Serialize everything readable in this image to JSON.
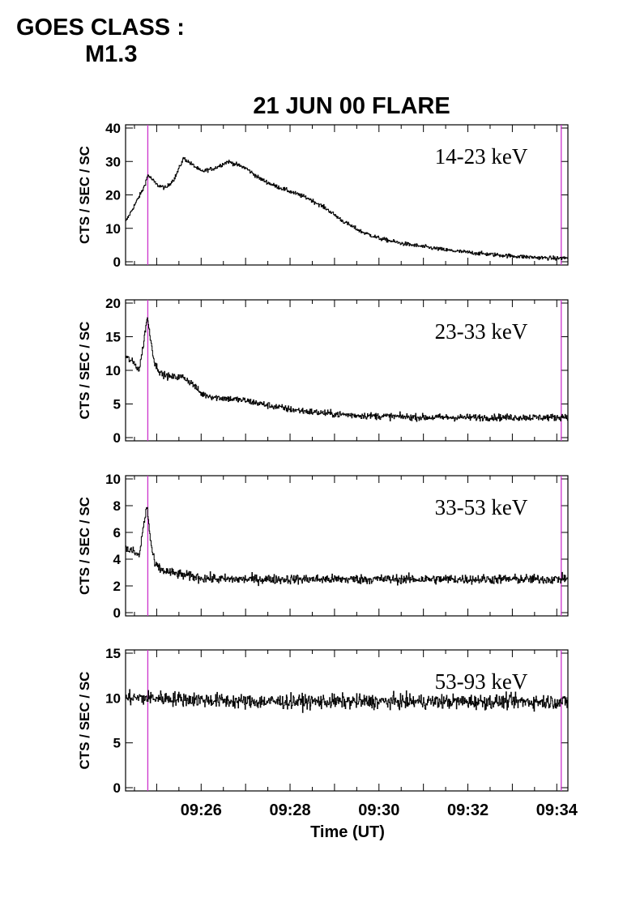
{
  "header": {
    "goes_class_label": "GOES CLASS :",
    "goes_class_value": "M1.3"
  },
  "chart_data": {
    "type": "line",
    "title": "21 JUN 00 FLARE",
    "xlabel": "Time (UT)",
    "x_unit": "minutes after 09:00 UT",
    "xlim": [
      24.3,
      34.25
    ],
    "x_ticks": [
      25,
      26,
      27,
      28,
      29,
      30,
      31,
      32,
      33,
      34
    ],
    "x_tick_labels": [
      "09:26",
      "09:28",
      "09:30",
      "09:32",
      "09:34"
    ],
    "x_tick_label_values": [
      26,
      28,
      30,
      32,
      34
    ],
    "marker_color": "#cc33cc",
    "markers_minutes": [
      24.8,
      34.1
    ],
    "line_color": "#000000",
    "panels": [
      {
        "name": "14-23 keV",
        "ylabel": "CTS / SEC / SC",
        "ylim": [
          0,
          40
        ],
        "yticks": [
          0,
          10,
          20,
          30,
          40
        ],
        "x": [
          24.3,
          24.5,
          24.7,
          24.8,
          25.0,
          25.2,
          25.4,
          25.6,
          25.8,
          26.0,
          26.3,
          26.6,
          26.8,
          27.0,
          27.3,
          27.6,
          28.0,
          28.4,
          28.8,
          29.2,
          29.6,
          30.0,
          30.5,
          31.0,
          31.5,
          32.0,
          32.5,
          33.0,
          33.5,
          34.0,
          34.25
        ],
        "values": [
          12,
          17,
          22,
          26,
          23,
          22,
          25,
          31,
          29,
          27,
          28,
          30,
          29,
          28,
          25,
          23,
          21,
          19,
          16,
          12,
          9,
          7,
          5.5,
          4.5,
          3.5,
          2.8,
          2.2,
          1.7,
          1.3,
          1.0,
          1.2
        ],
        "noise": 0.6
      },
      {
        "name": "23-33 keV",
        "ylabel": "CTS / SEC / SC",
        "ylim": [
          0,
          20
        ],
        "yticks": [
          0,
          5,
          10,
          15,
          20
        ],
        "x": [
          24.3,
          24.5,
          24.6,
          24.7,
          24.78,
          24.85,
          24.95,
          25.1,
          25.3,
          25.6,
          25.8,
          26.0,
          26.3,
          26.6,
          27.0,
          27.5,
          28.0,
          28.5,
          29.0,
          29.5,
          30.0,
          31.0,
          32.0,
          33.0,
          34.0,
          34.25
        ],
        "values": [
          12,
          11,
          10,
          14,
          18,
          15,
          11,
          9.5,
          9,
          9,
          8,
          6.5,
          6,
          5.8,
          5.5,
          4.8,
          4.2,
          3.8,
          3.5,
          3.3,
          3.2,
          3.0,
          3.0,
          3.0,
          3.0,
          3.2
        ],
        "noise": 0.5
      },
      {
        "name": "33-53 keV",
        "ylabel": "CTS / SEC / SC",
        "ylim": [
          0,
          10
        ],
        "yticks": [
          0,
          2,
          4,
          6,
          8,
          10
        ],
        "x": [
          24.3,
          24.5,
          24.6,
          24.7,
          24.78,
          24.85,
          24.95,
          25.1,
          25.3,
          25.6,
          26.0,
          26.5,
          27.0,
          28.0,
          29.0,
          30.0,
          31.0,
          32.0,
          33.0,
          34.0,
          34.25
        ],
        "values": [
          4.8,
          4.5,
          4.2,
          6.5,
          8.0,
          5.5,
          3.6,
          3.2,
          3.0,
          2.8,
          2.6,
          2.5,
          2.5,
          2.5,
          2.5,
          2.5,
          2.5,
          2.5,
          2.5,
          2.5,
          2.6
        ],
        "noise": 0.35
      },
      {
        "name": "53-93 keV",
        "ylabel": "CTS / SEC / SC",
        "ylim": [
          0,
          15
        ],
        "yticks": [
          0,
          5,
          10,
          15
        ],
        "x": [
          24.3,
          25.0,
          26.0,
          27.0,
          28.0,
          29.0,
          30.0,
          31.0,
          32.0,
          33.0,
          34.0,
          34.25
        ],
        "values": [
          10,
          10,
          9.8,
          9.6,
          9.6,
          9.6,
          9.6,
          9.6,
          9.6,
          9.6,
          9.6,
          9.5
        ],
        "noise": 0.8
      }
    ]
  }
}
